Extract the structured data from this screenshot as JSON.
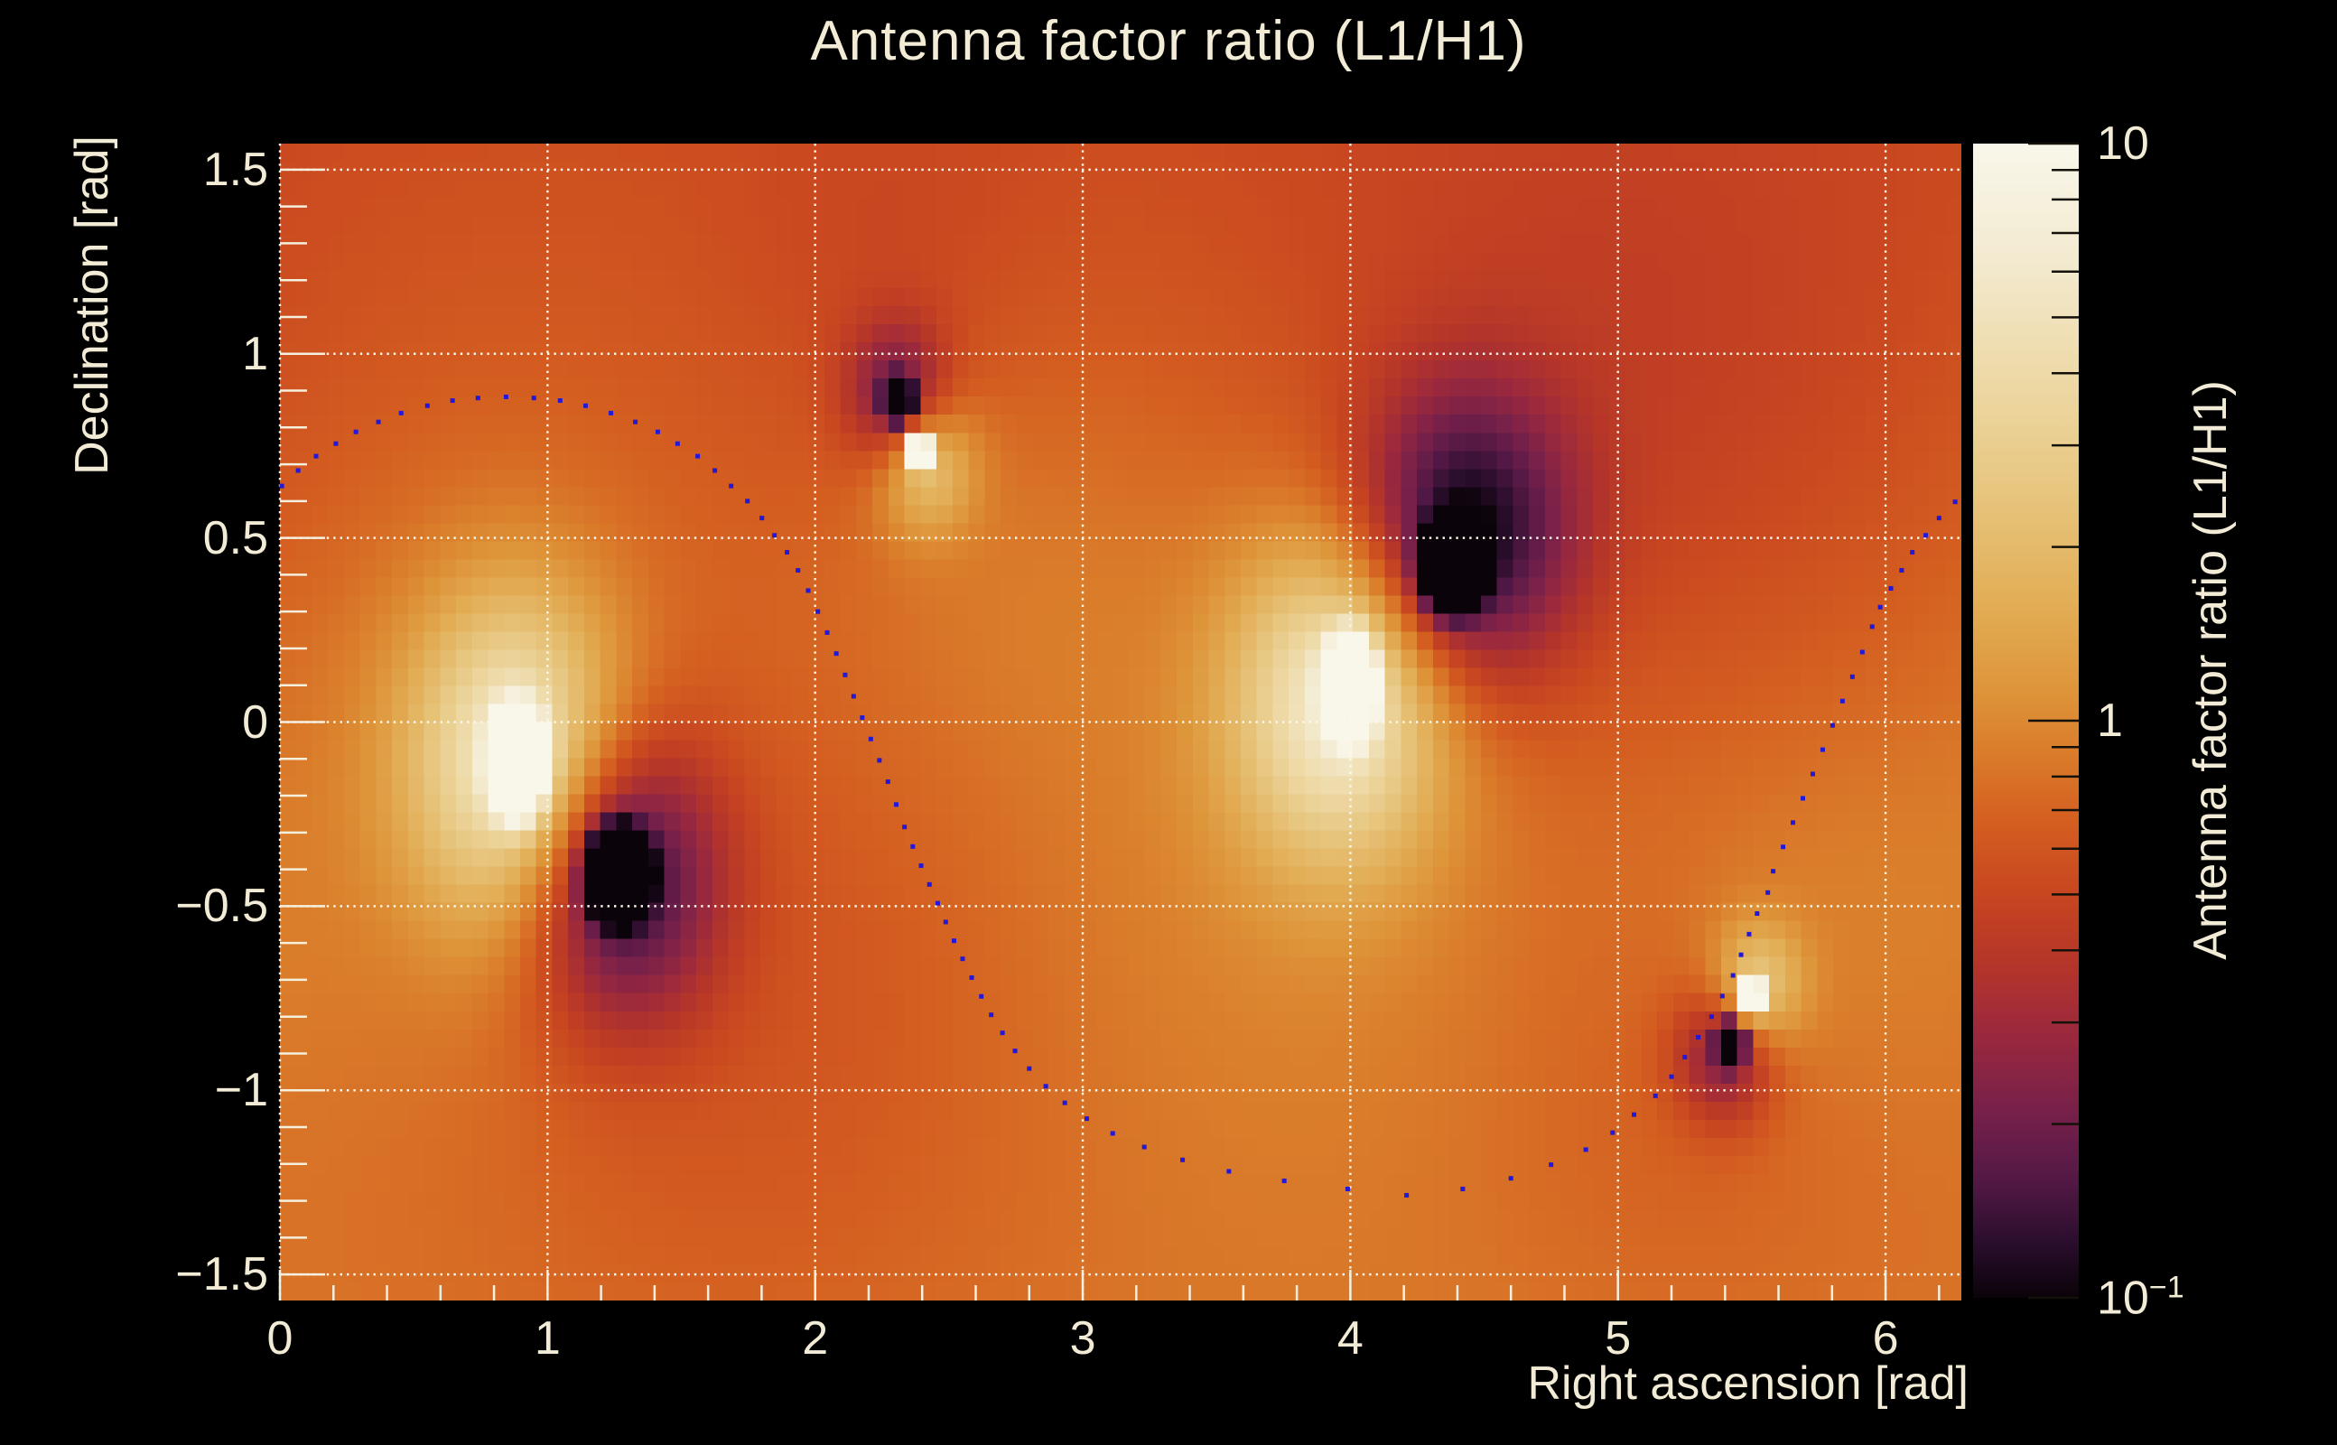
{
  "title": "Antenna factor ratio (L1/H1)",
  "colors": {
    "page_background": "#000000",
    "text": "#f2ebd5",
    "grid": "#fdf8ec",
    "tick": "#f5efdd",
    "track_dot": "#2118d8"
  },
  "x_axis": {
    "label": "Right ascension [rad]",
    "tick_labels": [
      "0",
      "1",
      "2",
      "3",
      "4",
      "5",
      "6"
    ],
    "tick_values": [
      0,
      1,
      2,
      3,
      4,
      5,
      6
    ],
    "minor_step": 0.2,
    "range": [
      0,
      6.2832
    ]
  },
  "y_axis": {
    "label": "Declination [rad]",
    "tick_labels": [
      "1.5",
      "1",
      "0.5",
      "0",
      "−0.5",
      "−1",
      "−1.5"
    ],
    "tick_values": [
      1.5,
      1.0,
      0.5,
      0.0,
      -0.5,
      -1.0,
      -1.5
    ],
    "minor_step": 0.1,
    "range": [
      -1.5708,
      1.5708
    ]
  },
  "colorbar": {
    "title": "Antenna factor ratio (L1/H1)",
    "scale": "log",
    "range": [
      0.1,
      10
    ],
    "tick_labels": [
      {
        "value": 10,
        "text": "10",
        "sup": ""
      },
      {
        "value": 1,
        "text": "1",
        "sup": ""
      },
      {
        "value": 0.1,
        "text": "10",
        "sup": "−1"
      }
    ],
    "minor_tick_values": [
      9,
      8,
      7,
      6,
      5,
      4,
      3,
      2,
      0.9,
      0.8,
      0.7,
      0.6,
      0.5,
      0.4,
      0.3,
      0.2
    ]
  },
  "chart_data": {
    "type": "heatmap",
    "title": "Antenna factor ratio (L1/H1)",
    "xlabel": "Right ascension [rad]",
    "ylabel": "Declination [rad]",
    "zlabel": "Antenna factor ratio (L1/H1)",
    "xlim": [
      0,
      6.2832
    ],
    "ylim": [
      -1.5708,
      1.5708
    ],
    "zscale": "log",
    "zlim": [
      0.1,
      10
    ],
    "grid": true,
    "background_log10_ratio": {
      "offset": -0.18,
      "dec_slope": -0.05
    },
    "bright_maxima_radec": [
      [
        0.89,
        -0.11
      ],
      [
        2.39,
        0.735
      ],
      [
        4.0,
        0.1
      ],
      [
        5.5,
        -0.745
      ]
    ],
    "dark_minima_radec": [
      [
        1.26,
        -0.41
      ],
      [
        2.31,
        0.875
      ],
      [
        4.38,
        0.42
      ],
      [
        5.42,
        -0.873
      ]
    ],
    "field_blobs": [
      [
        0.89,
        -0.11,
        0.06,
        0.085,
        2.9
      ],
      [
        0.89,
        -0.11,
        0.28,
        0.32,
        0.95
      ],
      [
        0.7,
        -0.2,
        0.85,
        0.8,
        0.18
      ],
      [
        1.26,
        -0.41,
        0.065,
        0.07,
        -3.0
      ],
      [
        1.26,
        -0.41,
        0.26,
        0.28,
        -0.85
      ],
      [
        1.5,
        -0.72,
        0.9,
        0.75,
        -0.16
      ],
      [
        2.31,
        0.875,
        0.03,
        0.033,
        -2.6
      ],
      [
        2.31,
        0.875,
        0.13,
        0.14,
        -0.55
      ],
      [
        2.3,
        1.0,
        0.45,
        0.45,
        -0.1
      ],
      [
        2.39,
        0.735,
        0.028,
        0.03,
        2.4
      ],
      [
        2.41,
        0.7,
        0.13,
        0.13,
        0.55
      ],
      [
        2.55,
        0.55,
        0.5,
        0.45,
        0.12
      ],
      [
        4.0,
        0.1,
        0.055,
        0.08,
        2.9
      ],
      [
        3.96,
        0.06,
        0.28,
        0.31,
        0.9
      ],
      [
        3.7,
        -0.1,
        0.9,
        0.8,
        0.17
      ],
      [
        4.38,
        0.42,
        0.065,
        0.068,
        -3.0
      ],
      [
        4.42,
        0.5,
        0.28,
        0.28,
        -0.8
      ],
      [
        4.9,
        0.8,
        1.0,
        0.7,
        -0.15
      ],
      [
        5.5,
        -0.745,
        0.028,
        0.03,
        2.4
      ],
      [
        5.52,
        -0.72,
        0.12,
        0.12,
        0.52
      ],
      [
        5.65,
        -0.58,
        0.45,
        0.42,
        0.1
      ],
      [
        5.42,
        -0.873,
        0.03,
        0.033,
        -2.6
      ],
      [
        5.4,
        -0.9,
        0.13,
        0.13,
        -0.52
      ],
      [
        5.3,
        -1.0,
        0.5,
        0.42,
        -0.09
      ]
    ],
    "colormap_log10_stops": [
      [
        -1.0,
        "#0a0309"
      ],
      [
        -0.9,
        "#2c0e2e"
      ],
      [
        -0.8,
        "#521845"
      ],
      [
        -0.68,
        "#76204a"
      ],
      [
        -0.55,
        "#99283e"
      ],
      [
        -0.42,
        "#b53529"
      ],
      [
        -0.3,
        "#c84620"
      ],
      [
        -0.18,
        "#d45d20"
      ],
      [
        -0.05,
        "#da7e2b"
      ],
      [
        0.05,
        "#de9439"
      ],
      [
        0.2,
        "#e2ad55"
      ],
      [
        0.4,
        "#e7c67f"
      ],
      [
        0.6,
        "#eedaa8"
      ],
      [
        0.8,
        "#f3ead0"
      ],
      [
        1.0,
        "#f9f7ea"
      ]
    ],
    "overlay_curve": {
      "marker": "square",
      "marker_size": 5,
      "color": "#2118d8",
      "points_radec": [
        [
          0.007,
          0.641
        ],
        [
          0.068,
          0.683
        ],
        [
          0.135,
          0.722
        ],
        [
          0.209,
          0.756
        ],
        [
          0.284,
          0.788
        ],
        [
          0.368,
          0.815
        ],
        [
          0.453,
          0.839
        ],
        [
          0.551,
          0.859
        ],
        [
          0.645,
          0.873
        ],
        [
          0.74,
          0.88
        ],
        [
          0.845,
          0.883
        ],
        [
          0.949,
          0.88
        ],
        [
          1.047,
          0.873
        ],
        [
          1.142,
          0.859
        ],
        [
          1.237,
          0.839
        ],
        [
          1.328,
          0.815
        ],
        [
          1.412,
          0.788
        ],
        [
          1.486,
          0.756
        ],
        [
          1.561,
          0.722
        ],
        [
          1.625,
          0.683
        ],
        [
          1.686,
          0.641
        ],
        [
          1.747,
          0.6
        ],
        [
          1.801,
          0.554
        ],
        [
          1.848,
          0.507
        ],
        [
          1.895,
          0.461
        ],
        [
          1.936,
          0.412
        ],
        [
          1.974,
          0.357
        ],
        [
          2.01,
          0.3
        ],
        [
          2.045,
          0.243
        ],
        [
          2.079,
          0.186
        ],
        [
          2.112,
          0.128
        ],
        [
          2.144,
          0.07
        ],
        [
          2.176,
          0.012
        ],
        [
          2.208,
          -0.046
        ],
        [
          2.24,
          -0.104
        ],
        [
          2.272,
          -0.162
        ],
        [
          2.303,
          -0.224
        ],
        [
          2.334,
          -0.285
        ],
        [
          2.365,
          -0.338
        ],
        [
          2.396,
          -0.39
        ],
        [
          2.427,
          -0.441
        ],
        [
          2.458,
          -0.492
        ],
        [
          2.488,
          -0.543
        ],
        [
          2.519,
          -0.594
        ],
        [
          2.551,
          -0.643
        ],
        [
          2.585,
          -0.694
        ],
        [
          2.621,
          -0.745
        ],
        [
          2.658,
          -0.795
        ],
        [
          2.7,
          -0.844
        ],
        [
          2.747,
          -0.893
        ],
        [
          2.8,
          -0.941
        ],
        [
          2.862,
          -0.989
        ],
        [
          2.933,
          -1.034
        ],
        [
          3.015,
          -1.077
        ],
        [
          3.112,
          -1.117
        ],
        [
          3.23,
          -1.154
        ],
        [
          3.373,
          -1.189
        ],
        [
          3.546,
          -1.22
        ],
        [
          3.753,
          -1.246
        ],
        [
          3.99,
          -1.268
        ],
        [
          4.21,
          -1.285
        ],
        [
          4.42,
          -1.268
        ],
        [
          4.6,
          -1.239
        ],
        [
          4.75,
          -1.202
        ],
        [
          4.88,
          -1.161
        ],
        [
          4.98,
          -1.115
        ],
        [
          5.06,
          -1.066
        ],
        [
          5.14,
          -1.015
        ],
        [
          5.2,
          -0.963
        ],
        [
          5.25,
          -0.91
        ],
        [
          5.3,
          -0.856
        ],
        [
          5.35,
          -0.8
        ],
        [
          5.39,
          -0.744
        ],
        [
          5.43,
          -0.688
        ],
        [
          5.46,
          -0.632
        ],
        [
          5.49,
          -0.576
        ],
        [
          5.52,
          -0.52
        ],
        [
          5.56,
          -0.463
        ],
        [
          5.58,
          -0.405
        ],
        [
          5.617,
          -0.339
        ],
        [
          5.654,
          -0.273
        ],
        [
          5.691,
          -0.207
        ],
        [
          5.728,
          -0.141
        ],
        [
          5.765,
          -0.075
        ],
        [
          5.802,
          -0.009
        ],
        [
          5.839,
          0.057
        ],
        [
          5.876,
          0.123
        ],
        [
          5.913,
          0.19
        ],
        [
          5.95,
          0.259
        ],
        [
          5.98,
          0.312
        ],
        [
          6.02,
          0.363
        ],
        [
          6.06,
          0.412
        ],
        [
          6.1,
          0.461
        ],
        [
          6.15,
          0.507
        ],
        [
          6.2,
          0.554
        ],
        [
          6.26,
          0.598
        ]
      ]
    }
  }
}
